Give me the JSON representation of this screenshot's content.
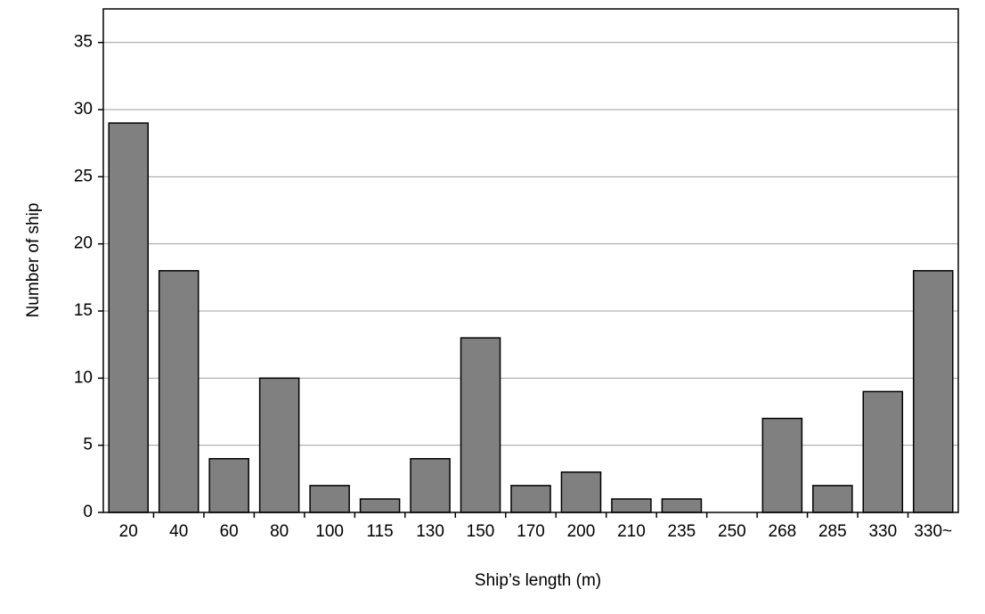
{
  "chart_data": {
    "type": "bar",
    "x_label": "Ship’s length  (m)",
    "y_label": "Number of ship",
    "categories": [
      "20",
      "40",
      "60",
      "80",
      "100",
      "115",
      "130",
      "150",
      "170",
      "200",
      "210",
      "235",
      "250",
      "268",
      "285",
      "330",
      "330~"
    ],
    "values": [
      29,
      18,
      4,
      10,
      2,
      1,
      4,
      13,
      2,
      3,
      1,
      1,
      0,
      7,
      2,
      9,
      18
    ],
    "color": "#808080",
    "ylim": [
      0,
      37.5
    ],
    "yticks": [
      0,
      5,
      10,
      15,
      20,
      25,
      30,
      35
    ],
    "grid": true
  }
}
